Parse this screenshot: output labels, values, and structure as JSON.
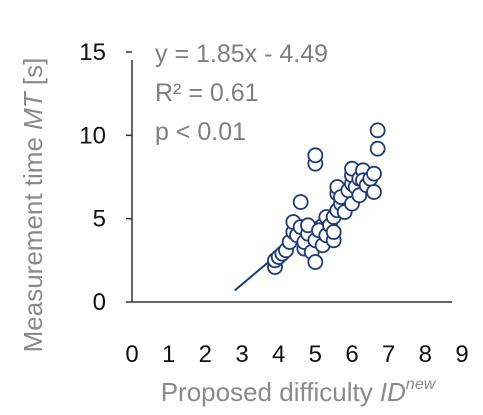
{
  "chart_data": {
    "type": "scatter",
    "xlabel": {
      "text": "Proposed difficulty ",
      "italic": "ID",
      "sup": "new"
    },
    "ylabel": {
      "text": "Measurement time ",
      "italic": "MT",
      "unit": " [s]"
    },
    "xlim": [
      0,
      9
    ],
    "ylim": [
      0,
      15
    ],
    "xticks": [
      "0",
      "1",
      "2",
      "3",
      "4",
      "5",
      "6",
      "7",
      "8",
      "9"
    ],
    "yticks": [
      "0",
      "5",
      "10",
      "15"
    ],
    "grid": false,
    "annotations": [
      "y = 1.85x - 4.49",
      "R² = 0.61",
      "p < 0.01"
    ],
    "trendline": {
      "slope": 1.85,
      "intercept": -4.49,
      "x_range": [
        2.8,
        6.7
      ]
    },
    "colors": {
      "marker": "#1f3b73",
      "trendline": "#1f3b73",
      "axis": "#333333",
      "label": "#8a8a8a"
    },
    "points": [
      [
        3.9,
        2.1
      ],
      [
        3.9,
        2.5
      ],
      [
        4.0,
        2.7
      ],
      [
        4.1,
        2.9
      ],
      [
        4.2,
        3.1
      ],
      [
        4.3,
        3.6
      ],
      [
        4.4,
        4.2
      ],
      [
        4.4,
        4.8
      ],
      [
        4.5,
        4.0
      ],
      [
        4.6,
        4.5
      ],
      [
        4.6,
        6.0
      ],
      [
        4.7,
        3.2
      ],
      [
        4.7,
        3.6
      ],
      [
        4.8,
        4.1
      ],
      [
        4.8,
        4.6
      ],
      [
        4.9,
        3.0
      ],
      [
        5.0,
        8.3
      ],
      [
        5.0,
        8.8
      ],
      [
        5.0,
        2.4
      ],
      [
        5.0,
        3.7
      ],
      [
        5.1,
        4.3
      ],
      [
        5.2,
        3.4
      ],
      [
        5.3,
        4.0
      ],
      [
        5.3,
        5.1
      ],
      [
        5.4,
        4.6
      ],
      [
        5.5,
        3.7
      ],
      [
        5.5,
        4.2
      ],
      [
        5.5,
        5.1
      ],
      [
        5.6,
        5.5
      ],
      [
        5.6,
        6.5
      ],
      [
        5.6,
        6.9
      ],
      [
        5.7,
        5.9
      ],
      [
        5.7,
        6.3
      ],
      [
        5.8,
        5.4
      ],
      [
        5.9,
        6.7
      ],
      [
        6.0,
        5.9
      ],
      [
        6.0,
        7.1
      ],
      [
        6.0,
        7.6
      ],
      [
        6.0,
        8.0
      ],
      [
        6.1,
        6.9
      ],
      [
        6.2,
        6.4
      ],
      [
        6.2,
        7.4
      ],
      [
        6.3,
        7.9
      ],
      [
        6.3,
        7.3
      ],
      [
        6.4,
        7.0
      ],
      [
        6.5,
        7.4
      ],
      [
        6.6,
        7.7
      ],
      [
        6.6,
        6.6
      ],
      [
        6.7,
        9.2
      ],
      [
        6.7,
        10.3
      ]
    ]
  }
}
